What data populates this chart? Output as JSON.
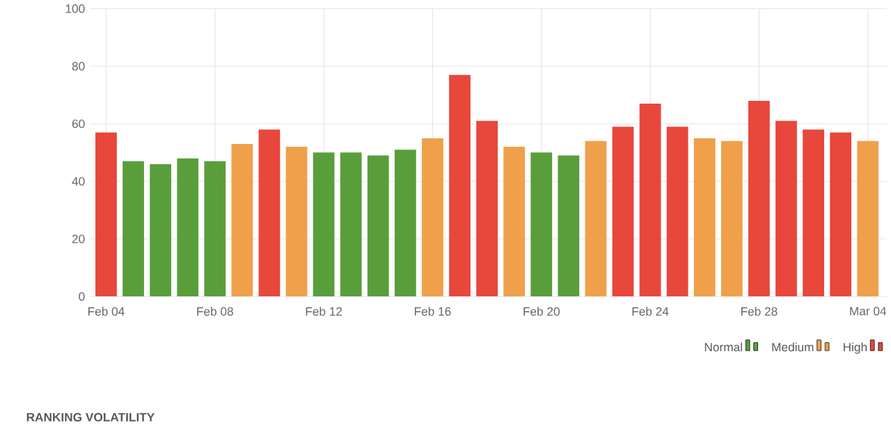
{
  "chart_data": {
    "type": "bar",
    "title": "RANKING VOLATILITY",
    "categories": [
      "Feb 04",
      null,
      null,
      null,
      "Feb 08",
      null,
      null,
      null,
      "Feb 12",
      null,
      null,
      null,
      "Feb 16",
      null,
      null,
      null,
      "Feb 20",
      null,
      null,
      null,
      "Feb 24",
      null,
      null,
      null,
      "Feb 28",
      null,
      null,
      null,
      "Mar 04"
    ],
    "series": [
      {
        "name": "Normal",
        "color": "#5a9e3c",
        "values": [
          null,
          47,
          46,
          48,
          47,
          null,
          null,
          null,
          50,
          50,
          49,
          51,
          null,
          null,
          null,
          null,
          50,
          49,
          null,
          null,
          null,
          null,
          null,
          null,
          null,
          null,
          null,
          null,
          null
        ]
      },
      {
        "name": "Medium",
        "color": "#f0a04b",
        "values": [
          null,
          null,
          null,
          null,
          null,
          53,
          null,
          52,
          null,
          null,
          null,
          null,
          55,
          null,
          null,
          52,
          null,
          null,
          54,
          null,
          null,
          null,
          55,
          54,
          null,
          null,
          null,
          null,
          54
        ]
      },
      {
        "name": "High",
        "color": "#e8473b",
        "values": [
          57,
          null,
          null,
          null,
          null,
          null,
          58,
          null,
          null,
          null,
          null,
          null,
          null,
          77,
          61,
          null,
          null,
          null,
          null,
          59,
          67,
          59,
          null,
          null,
          68,
          61,
          58,
          57,
          null
        ]
      }
    ],
    "ylim": [
      0,
      100
    ],
    "yticks": [
      0,
      20,
      40,
      60,
      80,
      100
    ],
    "grid": true,
    "legend": "bottom right"
  }
}
